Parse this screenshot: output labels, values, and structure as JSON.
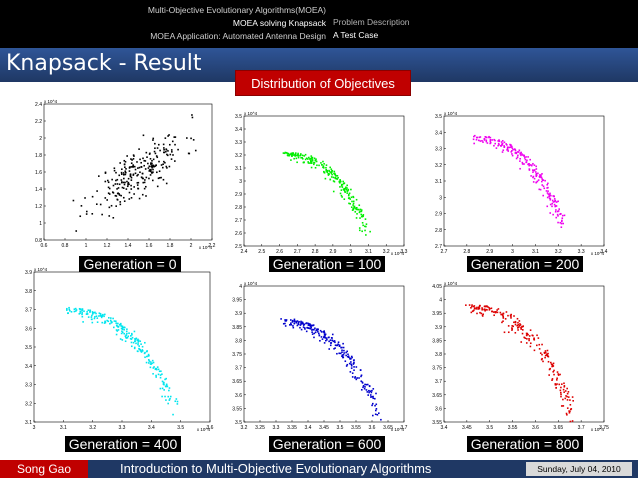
{
  "header": {
    "nav_left": [
      "Multi-Objective Evolutionary Algorithms(MOEA)",
      "MOEA solving Knapsack",
      "MOEA Application: Automated Antenna Design"
    ],
    "nav_right": [
      "Problem Description",
      "A Test Case"
    ]
  },
  "slide": {
    "title": "Knapsack - Result",
    "callout": "Distribution of Objectives"
  },
  "footer": {
    "author": "Song Gao",
    "title": "Introduction to Multi-Objective Evolutionary Algorithms",
    "date": "Sunday, July 04, 2010"
  },
  "colors": {
    "header_bg": "#000000",
    "title_bar": "#1f3864",
    "accent_red": "#c00000",
    "gen0": "#000000",
    "gen100": "#00ee00",
    "gen200": "#ee00ee",
    "gen400": "#00e5ee",
    "gen600": "#0000cc",
    "gen800": "#dd0000"
  },
  "chart_data": [
    {
      "type": "scatter",
      "label": "Generation = 0",
      "color": "#000000",
      "xlim": [
        0.6,
        2.2
      ],
      "ylim": [
        0.8,
        2.4
      ],
      "xticks": [
        "0.6",
        "0.8",
        "1",
        "1.2",
        "1.4",
        "1.6",
        "1.8",
        "2",
        "2.2"
      ],
      "yticks": [
        "0.8",
        "1",
        "1.2",
        "1.4",
        "1.6",
        "1.8",
        "2",
        "2.2",
        "2.4"
      ],
      "x_exponent": "x 10^4",
      "y_exponent": "x 10^4",
      "cloud": {
        "cx": 1.5,
        "cy": 1.6,
        "sx": 0.22,
        "sy": 0.22,
        "corr": 0.75,
        "n": 260,
        "seed": 11
      }
    },
    {
      "type": "scatter",
      "label": "Generation = 100",
      "color": "#00ee00",
      "xlim": [
        2.4,
        3.3
      ],
      "ylim": [
        2.5,
        3.5
      ],
      "xticks": [
        "2.4",
        "2.5",
        "2.6",
        "2.7",
        "2.8",
        "2.9",
        "3",
        "3.1",
        "3.2",
        "3.3"
      ],
      "yticks": [
        "2.5",
        "2.6",
        "2.7",
        "2.8",
        "2.9",
        "3",
        "3.1",
        "3.2",
        "3.3",
        "3.4",
        "3.5"
      ],
      "x_exponent": "x 10^4",
      "y_exponent": "x 10^4",
      "front": {
        "x0": 2.62,
        "x1": 3.1,
        "ytop": 3.22,
        "ybot": 2.65,
        "n": 230,
        "seed": 23
      }
    },
    {
      "type": "scatter",
      "label": "Generation = 200",
      "color": "#ee00ee",
      "xlim": [
        2.7,
        3.4
      ],
      "ylim": [
        2.7,
        3.5
      ],
      "xticks": [
        "2.7",
        "2.8",
        "2.9",
        "3",
        "3.1",
        "3.2",
        "3.3",
        "3.4"
      ],
      "yticks": [
        "2.7",
        "2.8",
        "2.9",
        "3",
        "3.1",
        "3.2",
        "3.3",
        "3.4",
        "3.5"
      ],
      "x_exponent": "x 10^4",
      "y_exponent": "x 10^4",
      "front": {
        "x0": 2.82,
        "x1": 3.22,
        "ytop": 3.38,
        "ybot": 2.88,
        "n": 220,
        "seed": 37
      }
    },
    {
      "type": "scatter",
      "label": "Generation = 400",
      "color": "#00e5ee",
      "xlim": [
        3.0,
        3.6
      ],
      "ylim": [
        3.1,
        3.9
      ],
      "xticks": [
        "3",
        "3.1",
        "3.2",
        "3.3",
        "3.4",
        "3.5",
        "3.6"
      ],
      "yticks": [
        "3.1",
        "3.2",
        "3.3",
        "3.4",
        "3.5",
        "3.6",
        "3.7",
        "3.8",
        "3.9"
      ],
      "x_exponent": "x 10^4",
      "y_exponent": "x 10^4",
      "front": {
        "x0": 3.1,
        "x1": 3.48,
        "ytop": 3.71,
        "ybot": 3.22,
        "n": 230,
        "seed": 41
      }
    },
    {
      "type": "scatter",
      "label": "Generation = 600",
      "color": "#0000cc",
      "xlim": [
        3.2,
        3.7
      ],
      "ylim": [
        3.5,
        4.0
      ],
      "xticks": [
        "3.2",
        "3.25",
        "3.3",
        "3.35",
        "3.4",
        "3.45",
        "3.5",
        "3.55",
        "3.6",
        "3.65",
        "3.7"
      ],
      "yticks": [
        "3.5",
        "3.55",
        "3.6",
        "3.65",
        "3.7",
        "3.75",
        "3.8",
        "3.85",
        "3.9",
        "3.95",
        "4"
      ],
      "x_exponent": "x 10^4",
      "y_exponent": "x 10^4",
      "front": {
        "x0": 3.3,
        "x1": 3.62,
        "ytop": 3.88,
        "ybot": 3.56,
        "n": 230,
        "seed": 53
      }
    },
    {
      "type": "scatter",
      "label": "Generation = 800",
      "color": "#dd0000",
      "xlim": [
        3.4,
        3.75
      ],
      "ylim": [
        3.55,
        4.05
      ],
      "xticks": [
        "3.4",
        "3.45",
        "3.5",
        "3.55",
        "3.6",
        "3.65",
        "3.7",
        "3.75"
      ],
      "yticks": [
        "3.55",
        "3.6",
        "3.65",
        "3.7",
        "3.75",
        "3.8",
        "3.85",
        "3.9",
        "3.95",
        "4",
        "4.05"
      ],
      "x_exponent": "x 10^4",
      "y_exponent": "x 10^4",
      "front": {
        "x0": 3.45,
        "x1": 3.68,
        "ytop": 3.98,
        "ybot": 3.62,
        "n": 220,
        "seed": 67
      }
    }
  ]
}
